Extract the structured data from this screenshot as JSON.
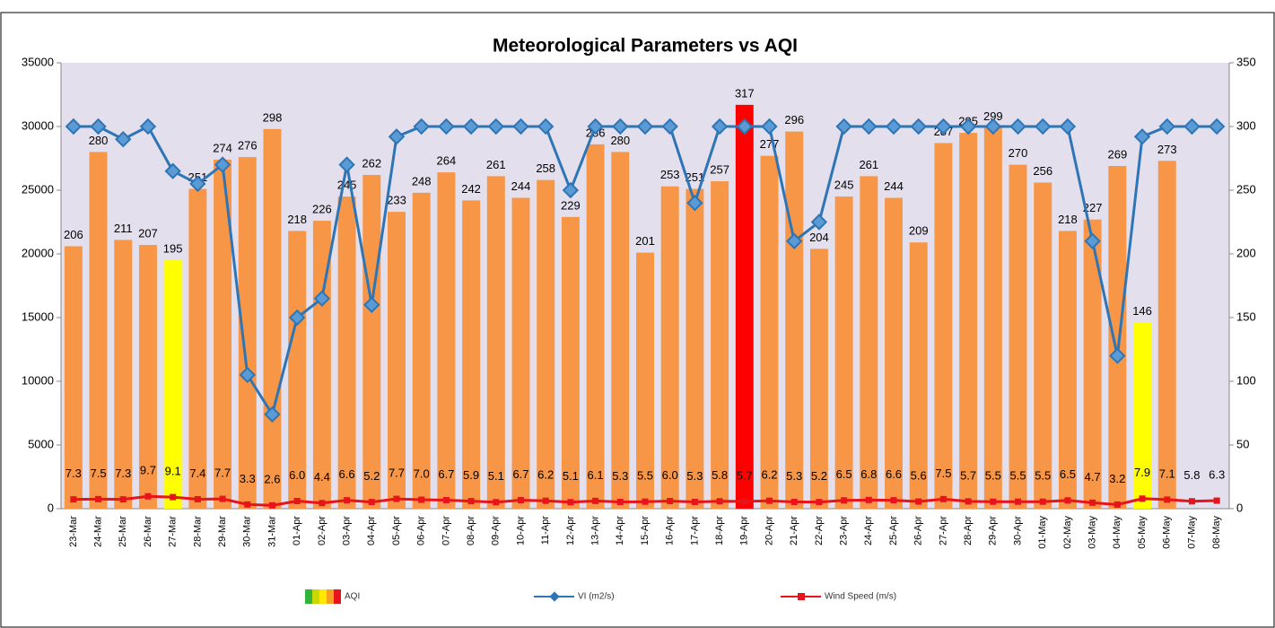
{
  "chart_data": {
    "type": "bar",
    "title": "Meteorological Parameters vs AQI",
    "categories": [
      "23-Mar",
      "24-Mar",
      "25-Mar",
      "26-Mar",
      "27-Mar",
      "28-Mar",
      "29-Mar",
      "30-Mar",
      "31-Mar",
      "01-Apr",
      "02-Apr",
      "03-Apr",
      "04-Apr",
      "05-Apr",
      "06-Apr",
      "07-Apr",
      "08-Apr",
      "09-Apr",
      "10-Apr",
      "11-Apr",
      "12-Apr",
      "13-Apr",
      "14-Apr",
      "15-Apr",
      "16-Apr",
      "17-Apr",
      "18-Apr",
      "19-Apr",
      "20-Apr",
      "21-Apr",
      "22-Apr",
      "23-Apr",
      "24-Apr",
      "25-Apr",
      "26-Apr",
      "27-Apr",
      "28-Apr",
      "29-Apr",
      "30-Apr",
      "01-May",
      "02-May",
      "03-May",
      "04-May",
      "05-May",
      "06-May",
      "07-May",
      "08-May"
    ],
    "ylim": [
      0,
      35000
    ],
    "yticks": [
      0,
      5000,
      10000,
      15000,
      20000,
      25000,
      30000,
      35000
    ],
    "y2lim": [
      0,
      350
    ],
    "y2ticks": [
      0,
      50,
      100,
      150,
      200,
      250,
      300,
      350
    ],
    "series": [
      {
        "name": "AQI",
        "type": "bar",
        "axis": "y2",
        "colors": [
          "#f79646",
          "#f79646",
          "#f79646",
          "#f79646",
          "#ffff00",
          "#f79646",
          "#f79646",
          "#f79646",
          "#f79646",
          "#f79646",
          "#f79646",
          "#f79646",
          "#f79646",
          "#f79646",
          "#f79646",
          "#f79646",
          "#f79646",
          "#f79646",
          "#f79646",
          "#f79646",
          "#f79646",
          "#f79646",
          "#f79646",
          "#f79646",
          "#f79646",
          "#f79646",
          "#f79646",
          "#ff0000",
          "#f79646",
          "#f79646",
          "#f79646",
          "#f79646",
          "#f79646",
          "#f79646",
          "#f79646",
          "#f79646",
          "#f79646",
          "#f79646",
          "#f79646",
          "#f79646",
          "#f79646",
          "#f79646",
          "#f79646",
          "#ffff00",
          "#f79646",
          null,
          null
        ],
        "values": [
          206,
          280,
          211,
          207,
          195,
          251,
          274,
          276,
          298,
          218,
          226,
          245,
          262,
          233,
          248,
          264,
          242,
          261,
          244,
          258,
          229,
          286,
          280,
          201,
          253,
          251,
          257,
          317,
          277,
          296,
          204,
          245,
          261,
          244,
          209,
          287,
          295,
          299,
          270,
          256,
          218,
          227,
          269,
          146,
          273,
          null,
          null
        ]
      },
      {
        "name": "VI (m2/s)",
        "type": "line",
        "color": "#2e75b6",
        "values": [
          30000,
          30000,
          29000,
          30000,
          26500,
          25500,
          27000,
          10500,
          7400,
          15000,
          16500,
          27000,
          16000,
          29200,
          30000,
          30000,
          30000,
          30000,
          30000,
          30000,
          25000,
          30000,
          30000,
          30000,
          30000,
          24000,
          30000,
          30000,
          30000,
          21000,
          22500,
          30000,
          30000,
          30000,
          30000,
          30000,
          30000,
          30000,
          30000,
          30000,
          30000,
          21000,
          12000,
          29200,
          30000,
          30000,
          30000
        ]
      },
      {
        "name": "Wind Speed (m/s)",
        "type": "line",
        "color": "#e8141b",
        "axis": "y2",
        "values": [
          7.3,
          7.5,
          7.3,
          9.7,
          9.1,
          7.4,
          7.7,
          3.3,
          2.6,
          6,
          4.4,
          6.6,
          5.2,
          7.7,
          7,
          6.7,
          5.9,
          5.1,
          6.7,
          6.2,
          5.1,
          6.1,
          5.3,
          5.5,
          6,
          5.3,
          5.8,
          5.7,
          6.2,
          5.3,
          5.2,
          6.5,
          6.8,
          6.6,
          5.6,
          7.5,
          5.7,
          5.5,
          5.5,
          5.5,
          6.5,
          4.7,
          3.2,
          7.9,
          7.1,
          5.8,
          6.3
        ],
        "value_labels": [
          "7.3",
          "7.5",
          "7.3",
          "9.7",
          "9.1",
          "7.4",
          "7.7",
          "3.3",
          "2.6",
          "6.0",
          "4.4",
          "6.6",
          "5.2",
          "7.7",
          "7.0",
          "6.7",
          "5.9",
          "5.1",
          "6.7",
          "6.2",
          "5.1",
          "6.1",
          "5.3",
          "5.5",
          "6.0",
          "5.3",
          "5.8",
          "5.7",
          "6.2",
          "5.3",
          "5.2",
          "6.5",
          "6.8",
          "6.6",
          "5.6",
          "7.5",
          "5.7",
          "5.5",
          "5.5",
          "5.5",
          "6.5",
          "4.7",
          "3.2",
          "7.9",
          "7.1",
          "5.8",
          "6.3"
        ]
      }
    ]
  }
}
